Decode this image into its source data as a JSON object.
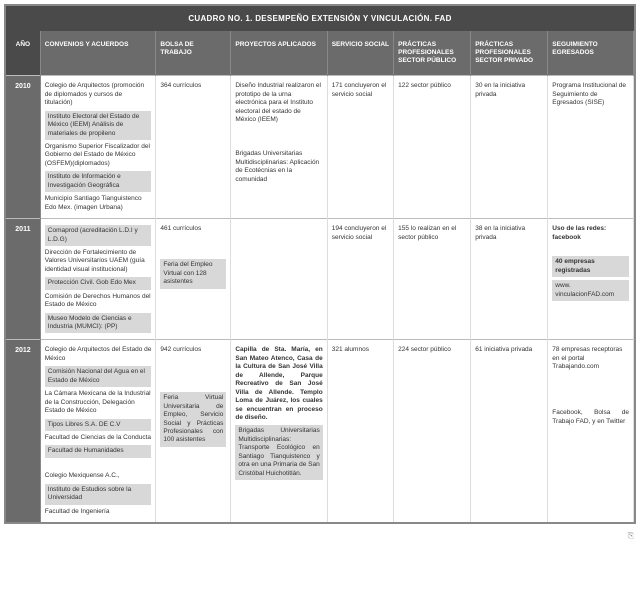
{
  "title": "CUADRO NO. 1. DESEMPEÑO EXTENSIÓN Y VINCULACIÓN. FAD",
  "columns": {
    "year": "AÑO",
    "convenios": "CONVENIOS Y ACUERDOS",
    "bolsa": "BOLSA DE TRABAJO",
    "proyectos": "PROYECTOS APLICADOS",
    "servicio": "SERVICIO SOCIAL",
    "practicas_pub": "PRÁCTICAS PROFESIONALES SECTOR  PÚBLICO",
    "practicas_priv": "PRÁCTICAS PROFESIONALES SECTOR PRIVADO",
    "seguimiento": "SEGUIMIENTO EGRESADOS"
  },
  "rows": {
    "y2010": {
      "year": "2010",
      "convenios": [
        {
          "t": "Colegio de Arquitectos (promoción de diplomados y cursos de titulación)"
        },
        {
          "t": "Instituto Electoral del Estado de México (IEEM) Análisis de materiales de propileno",
          "s": true
        },
        {
          "t": "Organismo Superior Fiscalizador del Gobierno del Estado de México (OSFEM)(diplomados)"
        },
        {
          "t": "Instituto de Información e Investigación Geográfica",
          "s": true
        },
        {
          "t": "Municipio Santiago Tianguistenco  Edo Mex. (imagen Urbana)"
        }
      ],
      "bolsa": [
        {
          "t": "364 currículos"
        }
      ],
      "proyectos": [
        {
          "t": "Diseño Industrial realizaron el prototipo de la urna electrónica para el Instituto electoral del estado de México (IEEM)"
        },
        {
          "t": " "
        },
        {
          "t": " "
        },
        {
          "t": "Brigadas Universitarias Multidisciplinarias: Aplicación de Ecotécnias en la comunidad"
        }
      ],
      "servicio": [
        {
          "t": "171 concluyeron el servicio social"
        }
      ],
      "pub": [
        {
          "t": "122 sector público"
        }
      ],
      "priv": [
        {
          "t": "30 en la iniciativa privada"
        }
      ],
      "seg": [
        {
          "t": "Programa Institucional de Seguimiento de Egresados (SISE)"
        }
      ]
    },
    "y2011": {
      "year": "2011",
      "convenios": [
        {
          "t": "Comaprod (acreditación L.D.I y L.D.G)",
          "s": true
        },
        {
          "t": "Dirección de Fortalecimiento de Valores Universitarios UAEM (guía identidad visual institucional)"
        },
        {
          "t": "Protección Civil. Gob Edo Mex",
          "s": true
        },
        {
          "t": "Comisión de Derechos Humanos del Estado de México"
        },
        {
          "t": "Museo Modelo de Ciencias e Industria (MUMCI): (PP)",
          "s": true
        }
      ],
      "bolsa": [
        {
          "t": "461 currículos"
        },
        {
          "t": " "
        },
        {
          "t": " "
        },
        {
          "t": "Feria del Empleo Virtual con 128 asistentes",
          "s": true
        }
      ],
      "proyectos": [
        {
          "t": ""
        }
      ],
      "servicio": [
        {
          "t": "194 concluyeron el servicio social"
        }
      ],
      "pub": [
        {
          "t": "155 lo realizan en el sector público"
        }
      ],
      "priv": [
        {
          "t": "38 en la iniciativa privada"
        }
      ],
      "seg": [
        {
          "t": "Uso de las redes: facebook",
          "b": true
        },
        {
          "t": " "
        },
        {
          "t": "40 empresas registradas",
          "b": true,
          "s": true
        },
        {
          "t": "www. vinculacionFAD.com",
          "s": true
        }
      ]
    },
    "y2012": {
      "year": "2012",
      "convenios": [
        {
          "t": "Colegio de Arquitectos del Estado de México"
        },
        {
          "t": "Comisión Nacional del Agua en el Estado de México",
          "s": true
        },
        {
          "t": "La Cámara Mexicana de la Industrial de la Construcción, Delegación Estado de México"
        },
        {
          "t": "Tipos Libres S.A. DE C.V",
          "s": true
        },
        {
          "t": "Facultad de Ciencias de la Conducta"
        },
        {
          "t": "Facultad de Humanidades",
          "s": true
        },
        {
          "t": " "
        },
        {
          "t": "Colegio Mexiquense A.C.,"
        },
        {
          "t": "Instituto de Estudios sobre la Universidad",
          "s": true
        },
        {
          "t": "Facultad de Ingeniería"
        }
      ],
      "bolsa": [
        {
          "t": "942 currículos"
        },
        {
          "t": " "
        },
        {
          "t": " "
        },
        {
          "t": " "
        },
        {
          "t": "Feria Virtual Universitaria de Empleo, Servicio Social y Prácticas Profesionales con 100 asistentes",
          "s": true,
          "j": true
        }
      ],
      "proyectos": [
        {
          "t": "Capilla de Sta. María, en San Mateo Atenco, Casa de la Cultura de San José Villa de Allende, Parque Recreativo de San José Villa de Allende. Templo Loma de Juárez, los cuales se encuentran en proceso de diseño.",
          "b": true,
          "j": true
        },
        {
          "t": "Brigadas Universitarias Multidisciplinarias: Transporte Ecológico en Santiago Tianquistenco y otra en una Primaria de San Cristóbal Huichotitlán.",
          "s": true,
          "j": true
        }
      ],
      "servicio": [
        {
          "t": "321 alumnos"
        }
      ],
      "pub": [
        {
          "t": "224 sector público"
        }
      ],
      "priv": [
        {
          "t": "61 iniciativa privada"
        }
      ],
      "seg": [
        {
          "t": "78 empresas receptoras en el portal Trabajando.com"
        },
        {
          "t": " "
        },
        {
          "t": " "
        },
        {
          "t": " "
        },
        {
          "t": "Facebook, Bolsa de Trabajo FAD, y en Twitter",
          "j": true
        }
      ]
    }
  },
  "footer_icon": "⎘"
}
